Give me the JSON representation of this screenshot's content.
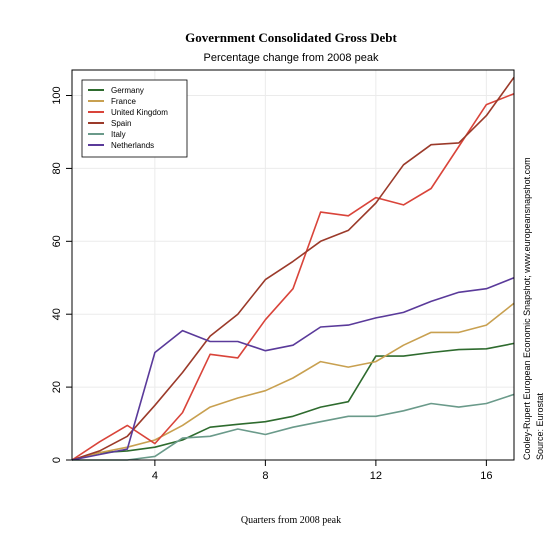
{
  "chart_data": {
    "type": "line",
    "title": "Government Consolidated Gross Debt",
    "subtitle": "Percentage change from 2008 peak",
    "xlabel": "Quarters from 2008 peak",
    "ylabel": "",
    "xlim": [
      1,
      17
    ],
    "ylim": [
      0,
      107
    ],
    "x_ticks": [
      4,
      8,
      12,
      16
    ],
    "y_ticks": [
      0,
      20,
      40,
      60,
      80,
      100
    ],
    "grid": true,
    "legend_position": "top-left",
    "side_notes": [
      "Cooley-Rupert European Economic Snapshot; www.europeansnapshot.com",
      "Source: Eurostat"
    ],
    "x": [
      1,
      2,
      3,
      4,
      5,
      6,
      7,
      8,
      9,
      10,
      11,
      12,
      13,
      14,
      15,
      16,
      17
    ],
    "series": [
      {
        "name": "Germany",
        "color": "#2e6b2e",
        "values": [
          0,
          2,
          2.5,
          3.5,
          5.5,
          9,
          9.8,
          10.5,
          12,
          14.5,
          16,
          28.5,
          28.5,
          29.5,
          30.3,
          30.5,
          32
        ]
      },
      {
        "name": "France",
        "color": "#c8a050",
        "values": [
          0,
          2,
          3.5,
          5.5,
          9.5,
          14.5,
          17,
          19,
          22.5,
          27,
          25.5,
          27,
          31.5,
          35,
          35,
          37,
          43
        ]
      },
      {
        "name": "United Kingdom",
        "color": "#d9443a",
        "values": [
          0,
          5,
          9.5,
          4.5,
          13,
          29,
          28,
          38.5,
          47,
          68,
          67,
          72,
          70,
          74.5,
          86,
          97.5,
          100.5
        ]
      },
      {
        "name": "Spain",
        "color": "#9b3a2a",
        "values": [
          0,
          2.5,
          6.5,
          15,
          24,
          34,
          40,
          49.5,
          54.5,
          60,
          63,
          70.5,
          81,
          86.5,
          87,
          94.5,
          105
        ]
      },
      {
        "name": "Italy",
        "color": "#6a9a8a",
        "values": [
          0,
          0,
          0,
          1,
          6,
          6.5,
          8.5,
          7,
          9,
          10.5,
          12,
          12,
          13.5,
          15.5,
          14.5,
          15.5,
          18
        ]
      },
      {
        "name": "Netherlands",
        "color": "#5a3a9a",
        "values": [
          0,
          1.5,
          3,
          29.5,
          35.5,
          32.5,
          32.5,
          30,
          31.5,
          36.5,
          37,
          39,
          40.5,
          43.5,
          46,
          47,
          50
        ]
      }
    ]
  }
}
